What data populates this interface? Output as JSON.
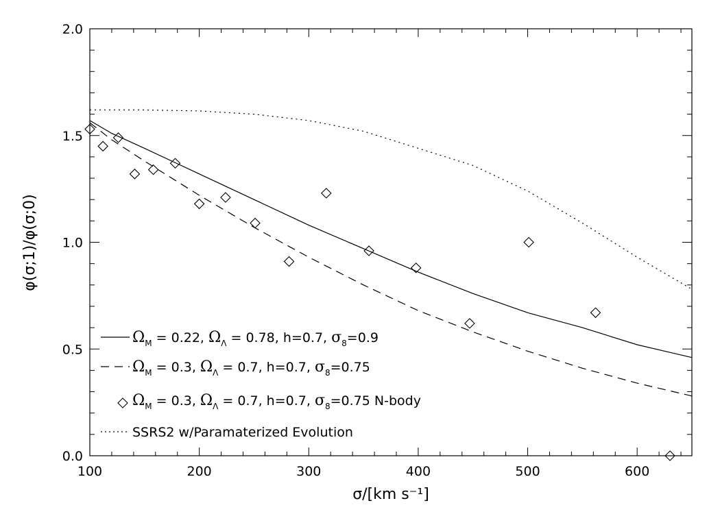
{
  "chart_data": {
    "type": "line",
    "xlabel": "σ/[km s⁻¹]",
    "ylabel": "φ(σ;1)/φ(σ;0)",
    "xlim": [
      100,
      650
    ],
    "ylim": [
      0.0,
      2.0
    ],
    "x_ticks": [
      100,
      200,
      300,
      400,
      500,
      600
    ],
    "x_tick_labels": [
      "100",
      "200",
      "300",
      "400",
      "500",
      "600"
    ],
    "y_ticks": [
      0.0,
      0.5,
      1.0,
      1.5,
      2.0
    ],
    "y_tick_labels": [
      "0.0",
      "0.5",
      "1.0",
      "1.5",
      "2.0"
    ],
    "grid": false,
    "legend_position": "bottom-left",
    "series": [
      {
        "style": "solid",
        "legend": {
          "sym1": "Ω",
          "sub1": "M",
          "mid": " = 0.22, ",
          "sym2": "Ω",
          "sub2": "Λ",
          "tail": " = 0.78, h=0.7, ",
          "sym3": "σ",
          "sub3": "8",
          "end": "=0.9"
        },
        "x": [
          100,
          120,
          150,
          200,
          250,
          300,
          350,
          400,
          450,
          500,
          550,
          600,
          650
        ],
        "y": [
          1.57,
          1.51,
          1.44,
          1.32,
          1.2,
          1.08,
          0.97,
          0.86,
          0.76,
          0.67,
          0.6,
          0.52,
          0.46
        ]
      },
      {
        "style": "dashed",
        "legend": {
          "sym1": "Ω",
          "sub1": "M",
          "mid": " = 0.3, ",
          "sym2": "Ω",
          "sub2": "Λ",
          "tail": " = 0.7, h=0.7, ",
          "sym3": "σ",
          "sub3": "8",
          "end": "=0.75"
        },
        "x": [
          100,
          120,
          150,
          200,
          250,
          300,
          350,
          400,
          450,
          500,
          550,
          600,
          650
        ],
        "y": [
          1.56,
          1.48,
          1.38,
          1.22,
          1.07,
          0.93,
          0.8,
          0.68,
          0.58,
          0.49,
          0.41,
          0.34,
          0.28
        ]
      },
      {
        "style": "markers",
        "marker": "diamond",
        "legend": {
          "sym1": "Ω",
          "sub1": "M",
          "mid": " = 0.3, ",
          "sym2": "Ω",
          "sub2": "Λ",
          "tail": " = 0.7, h=0.7, ",
          "sym3": "σ",
          "sub3": "8",
          "end": "=0.75 N-body"
        },
        "x": [
          100,
          112,
          126,
          141,
          158,
          178,
          200,
          224,
          251,
          282,
          316,
          355,
          398,
          447,
          501,
          562,
          630
        ],
        "y": [
          1.53,
          1.45,
          1.49,
          1.32,
          1.34,
          1.37,
          1.18,
          1.21,
          1.09,
          0.91,
          1.23,
          0.96,
          0.88,
          0.62,
          1.0,
          0.67,
          0.0
        ]
      },
      {
        "style": "dotted",
        "legend": {
          "plain": "SSRS2 w/Paramaterized Evolution"
        },
        "x": [
          100,
          150,
          200,
          250,
          300,
          350,
          400,
          450,
          500,
          550,
          600,
          650
        ],
        "y": [
          1.62,
          1.62,
          1.615,
          1.6,
          1.57,
          1.52,
          1.44,
          1.36,
          1.24,
          1.09,
          0.93,
          0.78
        ]
      }
    ]
  }
}
